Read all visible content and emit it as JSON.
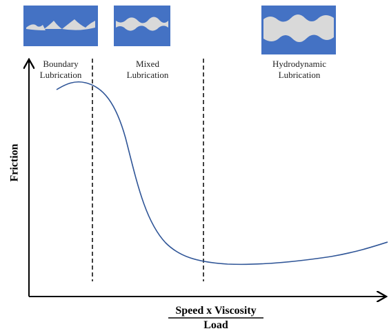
{
  "regions": [
    {
      "lines": [
        "Boundary",
        "Lubrication"
      ]
    },
    {
      "lines": [
        "Mixed",
        "Lubrication"
      ]
    },
    {
      "lines": [
        "Hydrodynamic",
        "Lubrication"
      ]
    }
  ],
  "y_axis_label": "Friction",
  "x_axis_label": {
    "numerator": "Speed x Viscosity",
    "denominator": "Load"
  }
}
